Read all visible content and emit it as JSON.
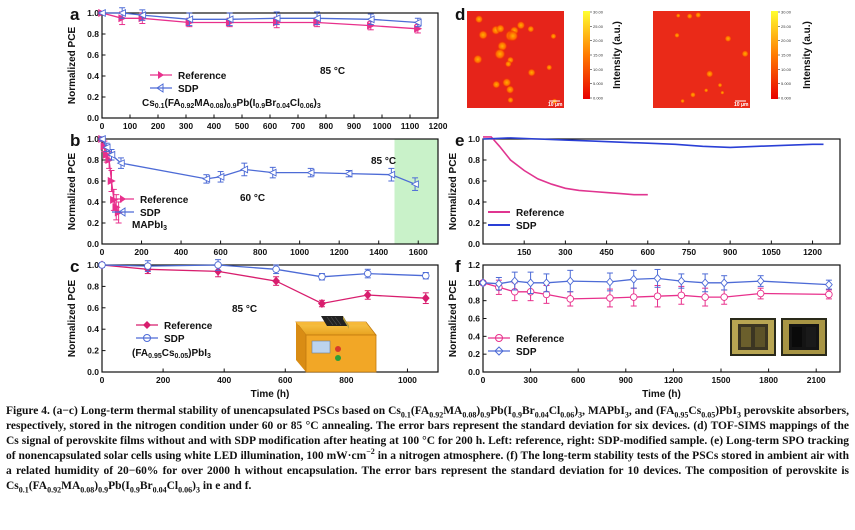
{
  "colors": {
    "reference": "#e8308c",
    "sdp": "#4d6bd6",
    "green_shade": "#c9f2c9",
    "panel_c_reference": "#d81e6e",
    "panel_e_reference": "#e03590",
    "panel_e_sdp": "#2a3fd6"
  },
  "panels": {
    "a": {
      "label": "a",
      "ylabel": "Normalized PCE",
      "annotation": "85 °C",
      "composition": "Cs0.1(FA0.92MA0.08)0.9Pb(I0.9Br0.04Cl0.06)3",
      "legend": [
        "Reference",
        "SDP"
      ]
    },
    "b": {
      "label": "b",
      "ylabel": "Normalized PCE",
      "annotation_60": "60 °C",
      "annotation_85": "85 °C",
      "composition": "MAPbI3",
      "legend": [
        "Reference",
        "SDP"
      ]
    },
    "c": {
      "label": "c",
      "ylabel": "Normalized PCE",
      "xlabel": "Time (h)",
      "annotation": "85 °C",
      "composition": "(FA0.95Cs0.05)PbI3",
      "legend": [
        "Reference",
        "SDP"
      ]
    },
    "d": {
      "label": "d",
      "colorbar_label": "Intensity (a.u.)",
      "scale_bar": "10 μm",
      "colorbar_ticks": [
        "30.00",
        "25.00",
        "20.00",
        "15.00",
        "10.00",
        "5.000",
        "0.000"
      ]
    },
    "e": {
      "label": "e",
      "ylabel": "Normalized PCE",
      "legend": [
        "Reference",
        "SDP"
      ]
    },
    "f": {
      "label": "f",
      "ylabel": "Normalized PCE",
      "xlabel": "Time (h)",
      "legend": [
        "Reference",
        "SDP"
      ]
    }
  },
  "chart_data": [
    {
      "id": "a",
      "type": "line",
      "xlim": [
        0,
        1200
      ],
      "ylim": [
        0,
        1.0
      ],
      "xticks": [
        0,
        100,
        200,
        300,
        400,
        500,
        600,
        700,
        800,
        900,
        1000,
        1100,
        1200
      ],
      "yticks": [
        0.0,
        0.2,
        0.4,
        0.6,
        0.8,
        1.0
      ],
      "series": [
        {
          "name": "Reference",
          "x": [
            0,
            72,
            144,
            312,
            456,
            624,
            768,
            960,
            1128
          ],
          "y": [
            1.0,
            0.95,
            0.95,
            0.91,
            0.91,
            0.91,
            0.91,
            0.88,
            0.85
          ],
          "err": [
            0.01,
            0.06,
            0.05,
            0.04,
            0.04,
            0.05,
            0.04,
            0.04,
            0.04
          ]
        },
        {
          "name": "SDP",
          "x": [
            0,
            72,
            144,
            312,
            456,
            624,
            768,
            960,
            1128
          ],
          "y": [
            1.0,
            1.0,
            0.98,
            0.94,
            0.94,
            0.95,
            0.95,
            0.94,
            0.91
          ],
          "err": [
            0.01,
            0.05,
            0.05,
            0.06,
            0.06,
            0.06,
            0.06,
            0.05,
            0.04
          ]
        }
      ]
    },
    {
      "id": "b",
      "type": "line",
      "xlim": [
        0,
        1700
      ],
      "ylim": [
        0,
        1.0
      ],
      "xticks": [
        0,
        200,
        400,
        600,
        800,
        1000,
        1200,
        1400,
        1600
      ],
      "yticks": [
        0.0,
        0.2,
        0.4,
        0.6,
        0.8,
        1.0
      ],
      "shaded_region": [
        1480,
        1700
      ],
      "series": [
        {
          "name": "Reference",
          "x": [
            0,
            12,
            24,
            36,
            48,
            60,
            72,
            84
          ],
          "y": [
            1.0,
            0.93,
            0.85,
            0.8,
            0.6,
            0.42,
            0.35,
            0.3
          ],
          "err": [
            0.02,
            0.05,
            0.07,
            0.08,
            0.1,
            0.1,
            0.12,
            0.1
          ]
        },
        {
          "name": "SDP",
          "x": [
            0,
            24,
            48,
            96,
            528,
            600,
            720,
            864,
            1056,
            1248,
            1464,
            1584
          ],
          "y": [
            1.0,
            0.92,
            0.85,
            0.77,
            0.62,
            0.64,
            0.71,
            0.68,
            0.68,
            0.67,
            0.66,
            0.57
          ],
          "err": [
            0.02,
            0.04,
            0.05,
            0.05,
            0.04,
            0.05,
            0.06,
            0.05,
            0.04,
            0.03,
            0.06,
            0.06
          ]
        }
      ]
    },
    {
      "id": "c",
      "type": "line",
      "xlim": [
        0,
        1100
      ],
      "ylim": [
        0,
        1.0
      ],
      "xticks": [
        0,
        200,
        400,
        600,
        800,
        1000
      ],
      "yticks": [
        0.0,
        0.2,
        0.4,
        0.6,
        0.8,
        1.0
      ],
      "series": [
        {
          "name": "Reference",
          "x": [
            0,
            150,
            380,
            570,
            720,
            870,
            1060
          ],
          "y": [
            1.0,
            0.96,
            0.94,
            0.85,
            0.64,
            0.72,
            0.69
          ],
          "err": [
            0.02,
            0.04,
            0.05,
            0.04,
            0.03,
            0.04,
            0.05
          ]
        },
        {
          "name": "SDP",
          "x": [
            0,
            150,
            380,
            570,
            720,
            870,
            1060
          ],
          "y": [
            1.0,
            0.99,
            1.0,
            0.96,
            0.89,
            0.92,
            0.9
          ],
          "err": [
            0.02,
            0.05,
            0.05,
            0.04,
            0.03,
            0.04,
            0.03
          ]
        }
      ]
    },
    {
      "id": "e",
      "type": "line",
      "xlim": [
        0,
        1300
      ],
      "ylim": [
        0,
        1.0
      ],
      "xticks": [
        150,
        300,
        450,
        600,
        750,
        900,
        1050,
        1200
      ],
      "yticks": [
        0.0,
        0.2,
        0.4,
        0.6,
        0.8,
        1.0
      ],
      "series": [
        {
          "name": "Reference",
          "x": [
            0,
            30,
            60,
            100,
            150,
            200,
            250,
            300,
            350,
            400,
            450,
            500,
            550,
            600
          ],
          "y": [
            1.02,
            1.02,
            0.93,
            0.8,
            0.7,
            0.62,
            0.57,
            0.53,
            0.51,
            0.5,
            0.49,
            0.48,
            0.47,
            0.47
          ]
        },
        {
          "name": "SDP",
          "x": [
            0,
            100,
            200,
            300,
            400,
            500,
            600,
            700,
            800,
            900,
            1000,
            1100,
            1200,
            1240
          ],
          "y": [
            1.0,
            1.01,
            1.0,
            0.99,
            0.98,
            0.97,
            0.96,
            0.95,
            0.93,
            0.92,
            0.93,
            0.94,
            0.95,
            0.95
          ]
        }
      ]
    },
    {
      "id": "f",
      "type": "line",
      "xlim": [
        0,
        2250
      ],
      "ylim": [
        0,
        1.2
      ],
      "xticks": [
        0,
        300,
        600,
        900,
        1200,
        1500,
        1800,
        2100
      ],
      "yticks": [
        0.0,
        0.2,
        0.4,
        0.6,
        0.8,
        1.0,
        1.2
      ],
      "series": [
        {
          "name": "Reference",
          "x": [
            0,
            100,
            200,
            300,
            400,
            550,
            800,
            950,
            1100,
            1250,
            1400,
            1520,
            1750,
            2180
          ],
          "y": [
            1.0,
            0.95,
            0.9,
            0.9,
            0.87,
            0.82,
            0.83,
            0.84,
            0.85,
            0.86,
            0.84,
            0.84,
            0.88,
            0.87
          ],
          "err": [
            0.02,
            0.08,
            0.1,
            0.1,
            0.1,
            0.08,
            0.1,
            0.1,
            0.12,
            0.1,
            0.1,
            0.08,
            0.06,
            0.05
          ]
        },
        {
          "name": "SDP",
          "x": [
            0,
            100,
            200,
            300,
            400,
            550,
            800,
            950,
            1100,
            1250,
            1400,
            1520,
            1750,
            2180
          ],
          "y": [
            1.0,
            0.99,
            1.02,
            1.0,
            1.0,
            1.02,
            1.01,
            1.04,
            1.05,
            1.02,
            1.0,
            1.0,
            1.02,
            0.98
          ],
          "err": [
            0.02,
            0.07,
            0.1,
            0.12,
            0.1,
            0.12,
            0.1,
            0.1,
            0.1,
            0.08,
            0.1,
            0.08,
            0.06,
            0.05
          ]
        }
      ]
    }
  ],
  "caption": {
    "p1": "Figure 4. (a−c) Long-term thermal stability of unencapsulated PSCs based on",
    "p2": ", MAPbI",
    "p3": ", and",
    "p4": " perovskite absorbers, respectively, stored in the nitrogen condition under 60 or 85 °C annealing. The error bars represent the standard deviation for six devices. (d) TOF-SIMS mappings of the Cs signal of perovskite films without and with SDP modification after heating at 100 °C for 200 h. Left: reference, right: SDP-modified sample. (e) Long-term SPO tracking of nonencapsulated solar cells using white LED illumination, 100 mW·cm",
    "p5": " in a nitrogen atmosphere. (f) The long-term stability tests of the PSCs stored in ambient air with a related humidity of 20−60% for over 2000 h without encapsulation. The error bars represent the standard deviation for 10 devices. The composition of perovskite is",
    "p6": " in e and f.",
    "sup_neg2": "−2"
  }
}
